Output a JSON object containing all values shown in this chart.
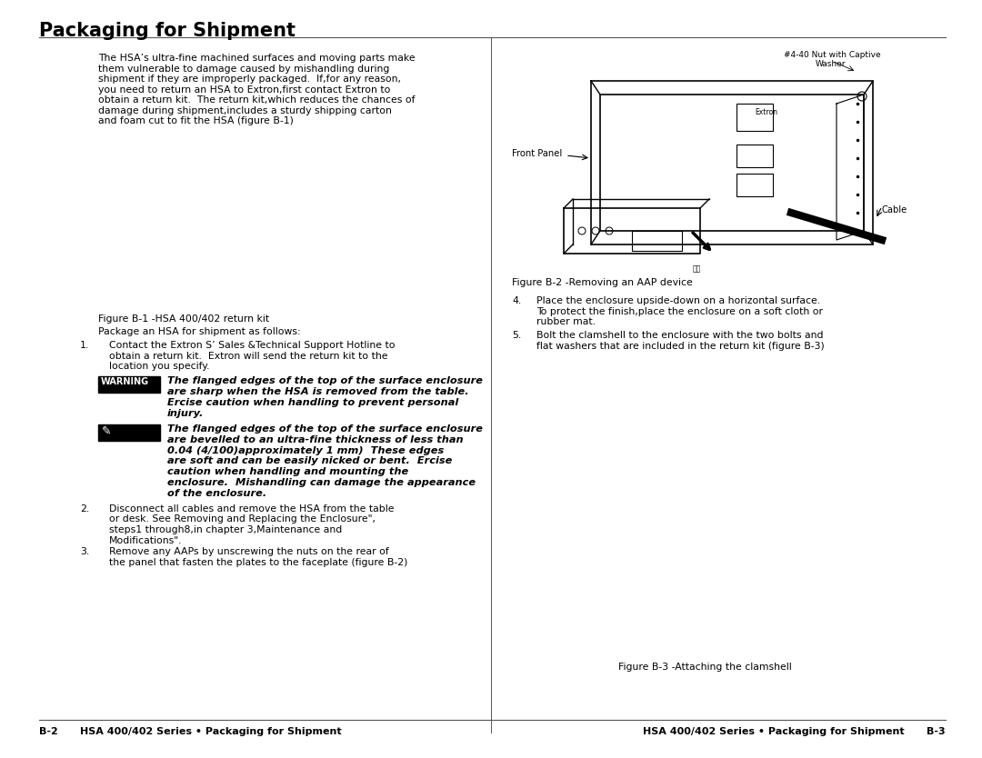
{
  "title": "Packaging for Shipment",
  "bg_color": "#ffffff",
  "text_color": "#000000",
  "title_fontsize": 15,
  "body_fontsize": 7.8,
  "intro_lines": [
    "The HSA’s ultra-fine machined surfaces and moving parts make",
    "them vulnerable to damage caused by mishandling during",
    "shipment if they are improperly packaged.  If,for any reason,",
    "you need to return an HSA to Extron,first contact Extron to",
    "obtain a return kit.  The return kit,which reduces the chances of",
    "damage during shipment,includes a sturdy shipping carton",
    "and foam cut to fit the HSA (figure B-1)"
  ],
  "fig_b1_caption": "Figure B-1 -HSA 400/402 return kit",
  "package_label": "Package an HSA for shipment as follows:",
  "step1_lines": [
    "Contact the Extron S’ Sales &Technical Support Hotline to",
    "obtain a return kit.  Extron will send the return kit to the",
    "location you specify."
  ],
  "warning_label": "WARNING",
  "warning_lines": [
    "The flanged edges of the top of the surface enclosure",
    "are sharp when the HSA is removed from the table.",
    "Ercise caution when handling to prevent personal",
    "injury."
  ],
  "note_lines": [
    "The flanged edges of the top of the surface enclosure",
    "are bevelled to an ultra-fine thickness of less than",
    "0.04 (4/100)approximately 1 mm)  These edges",
    "are soft and can be easily nicked or bent.  Ercise",
    "caution when handling and mounting the",
    "enclosure.  Mishandling can damage the appearance",
    "of the enclosure."
  ],
  "step2_lines": [
    "Disconnect all cables and remove the HSA from the table",
    "or desk. See Removing and Replacing the Enclosure\",",
    "steps1 through8,in chapter 3,Maintenance and",
    "Modifications\"."
  ],
  "step3_lines": [
    "Remove any AAPs by unscrewing the nuts on the rear of",
    "the panel that fasten the plates to the faceplate (figure B-2)"
  ],
  "step4_lines": [
    "Place the enclosure upside-down on a horizontal surface.",
    "To protect the finish,place the enclosure on a soft cloth or",
    "rubber mat."
  ],
  "step5_lines": [
    "Bolt the clamshell to the enclosure with the two bolts and",
    "flat washers that are included in the return kit (figure B-3)"
  ],
  "fig_b2_caption": "Figure B-2 -Removing an AAP device",
  "fig_b3_caption": "Figure B-3 -Attaching the clamshell",
  "footer_left_page": "B-2",
  "footer_left_text": "HSA 400/402 Series • Packaging for Shipment",
  "footer_right_text": "HSA 400/402 Series • Packaging for Shipment",
  "footer_right_page": "B-3",
  "line_color": "#555555"
}
